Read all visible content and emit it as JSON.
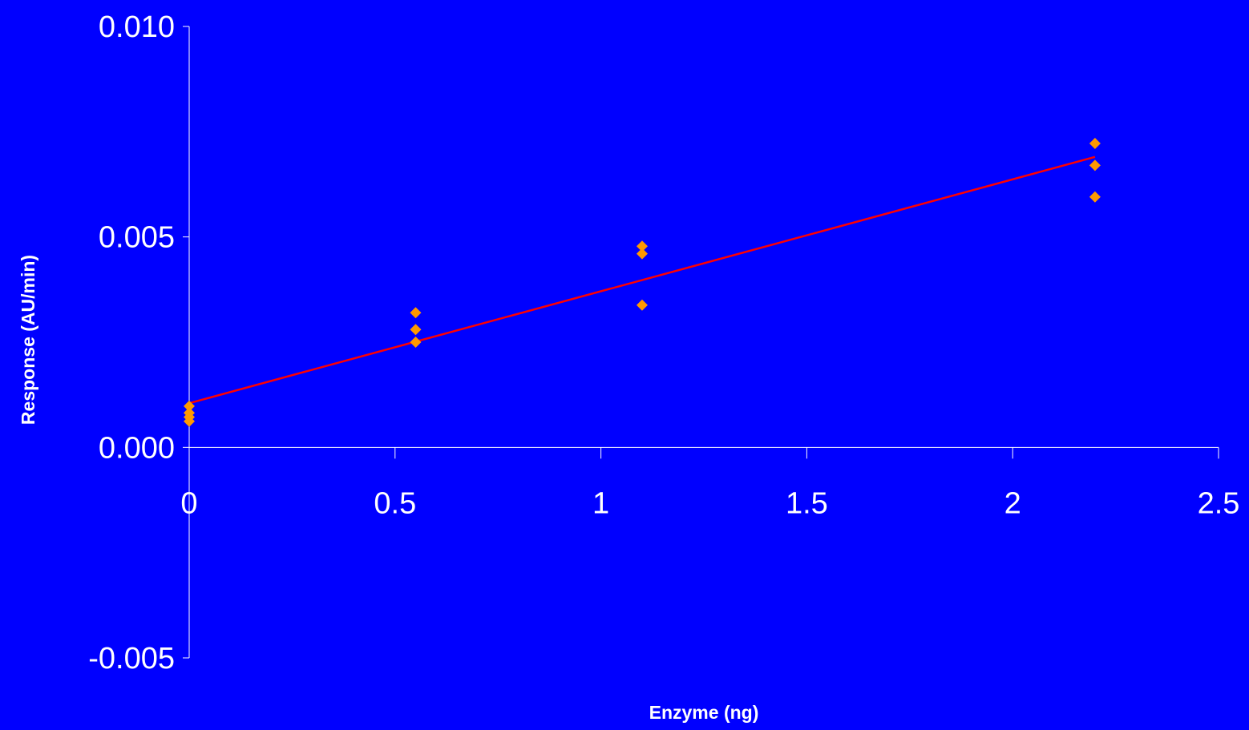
{
  "chart_data": {
    "type": "scatter",
    "title": "",
    "xlabel": "Enzyme (ng)",
    "ylabel": "Response (AU/min)",
    "xlim": [
      0,
      2.5
    ],
    "ylim": [
      -0.005,
      0.01
    ],
    "x_ticks": [
      "0",
      "0.5",
      "1",
      "1.5",
      "2",
      "2.5"
    ],
    "y_ticks": [
      "-0.005",
      "0.000",
      "0.005",
      "0.010"
    ],
    "grid": false,
    "legend": "none",
    "series": [
      {
        "marker": "diamond",
        "color": "#FF9900",
        "points": [
          {
            "x": 0,
            "y": 0.00098
          },
          {
            "x": 0,
            "y": 0.00082
          },
          {
            "x": 0,
            "y": 0.00072
          },
          {
            "x": 0,
            "y": 0.00062
          },
          {
            "x": 0.55,
            "y": 0.0032
          },
          {
            "x": 0.55,
            "y": 0.0028
          },
          {
            "x": 0.55,
            "y": 0.0025
          },
          {
            "x": 1.1,
            "y": 0.00478
          },
          {
            "x": 1.1,
            "y": 0.0046
          },
          {
            "x": 1.1,
            "y": 0.00338
          },
          {
            "x": 2.2,
            "y": 0.00722
          },
          {
            "x": 2.2,
            "y": 0.0067
          },
          {
            "x": 2.2,
            "y": 0.00595
          }
        ]
      }
    ],
    "trendline": {
      "type": "linear",
      "color": "#FF0000",
      "from": {
        "x": 0,
        "y": 0.00105
      },
      "to": {
        "x": 2.2,
        "y": 0.0069
      }
    }
  }
}
